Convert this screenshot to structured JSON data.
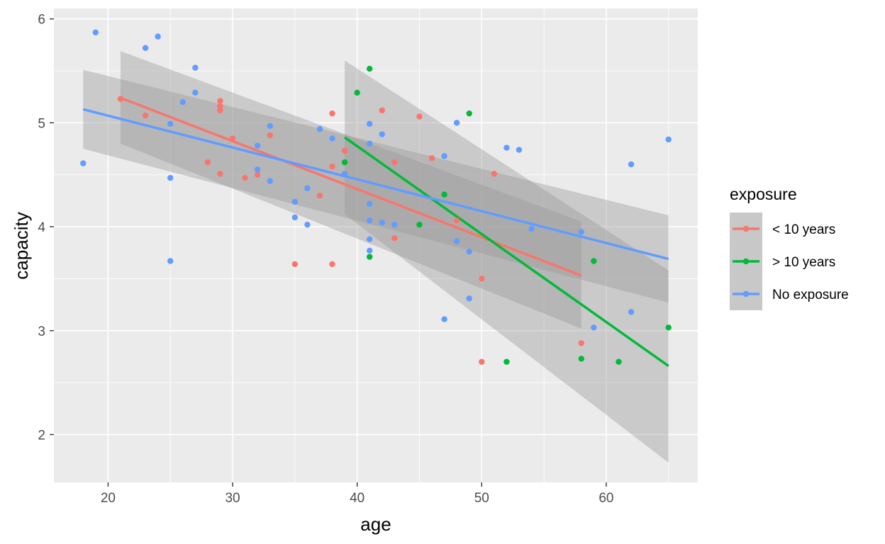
{
  "chart_data": {
    "type": "scatter",
    "xlabel": "age",
    "ylabel": "capacity",
    "xlim": [
      15.65,
      67.35
    ],
    "ylim": [
      1.54,
      6.1
    ],
    "x_ticks": [
      20,
      30,
      40,
      50,
      60
    ],
    "y_ticks": [
      2,
      3,
      4,
      5,
      6
    ],
    "grid": true,
    "legend": {
      "title": "exposure",
      "position": "right"
    },
    "series": [
      {
        "name": "< 10 years",
        "color": "#F8766D",
        "points": [
          {
            "x": 21,
            "y": 5.23
          },
          {
            "x": 23,
            "y": 5.07
          },
          {
            "x": 28,
            "y": 4.62
          },
          {
            "x": 29,
            "y": 5.21
          },
          {
            "x": 29,
            "y": 5.16
          },
          {
            "x": 29,
            "y": 5.12
          },
          {
            "x": 29,
            "y": 4.51
          },
          {
            "x": 30,
            "y": 4.85
          },
          {
            "x": 31,
            "y": 4.47
          },
          {
            "x": 32,
            "y": 4.5
          },
          {
            "x": 33,
            "y": 4.88
          },
          {
            "x": 35,
            "y": 3.64
          },
          {
            "x": 37,
            "y": 4.3
          },
          {
            "x": 38,
            "y": 5.09
          },
          {
            "x": 38,
            "y": 4.58
          },
          {
            "x": 38,
            "y": 3.64
          },
          {
            "x": 39,
            "y": 4.73
          },
          {
            "x": 42,
            "y": 5.12
          },
          {
            "x": 43,
            "y": 4.62
          },
          {
            "x": 43,
            "y": 3.89
          },
          {
            "x": 45,
            "y": 5.06
          },
          {
            "x": 46,
            "y": 4.66
          },
          {
            "x": 48,
            "y": 4.06
          },
          {
            "x": 50,
            "y": 3.5
          },
          {
            "x": 50,
            "y": 2.7
          },
          {
            "x": 51,
            "y": 4.51
          },
          {
            "x": 58,
            "y": 2.88
          }
        ],
        "fit": {
          "x": [
            21,
            58
          ],
          "y": [
            5.24,
            3.53
          ],
          "band_low": [
            4.8,
            3.02
          ],
          "band_high": [
            5.69,
            4.05
          ]
        }
      },
      {
        "name": "> 10 years",
        "color": "#00BA38",
        "points": [
          {
            "x": 39,
            "y": 4.62
          },
          {
            "x": 40,
            "y": 5.29
          },
          {
            "x": 41,
            "y": 5.52
          },
          {
            "x": 41,
            "y": 3.71
          },
          {
            "x": 45,
            "y": 4.02
          },
          {
            "x": 47,
            "y": 4.31
          },
          {
            "x": 49,
            "y": 5.09
          },
          {
            "x": 52,
            "y": 2.7
          },
          {
            "x": 58,
            "y": 2.73
          },
          {
            "x": 59,
            "y": 3.67
          },
          {
            "x": 61,
            "y": 2.7
          },
          {
            "x": 65,
            "y": 3.03
          }
        ],
        "fit": {
          "x": [
            39,
            65
          ],
          "y": [
            4.86,
            2.66
          ],
          "band_low": [
            4.12,
            1.73
          ],
          "band_high": [
            5.6,
            3.58
          ]
        }
      },
      {
        "name": "No exposure",
        "color": "#619CFF",
        "points": [
          {
            "x": 18,
            "y": 4.61
          },
          {
            "x": 19,
            "y": 5.87
          },
          {
            "x": 23,
            "y": 5.72
          },
          {
            "x": 24,
            "y": 5.83
          },
          {
            "x": 25,
            "y": 4.99
          },
          {
            "x": 25,
            "y": 4.47
          },
          {
            "x": 25,
            "y": 3.67
          },
          {
            "x": 26,
            "y": 5.2
          },
          {
            "x": 27,
            "y": 5.53
          },
          {
            "x": 27,
            "y": 5.29
          },
          {
            "x": 32,
            "y": 4.78
          },
          {
            "x": 32,
            "y": 4.55
          },
          {
            "x": 33,
            "y": 4.97
          },
          {
            "x": 33,
            "y": 4.44
          },
          {
            "x": 35,
            "y": 4.24
          },
          {
            "x": 35,
            "y": 4.09
          },
          {
            "x": 36,
            "y": 4.37
          },
          {
            "x": 36,
            "y": 4.02
          },
          {
            "x": 37,
            "y": 4.94
          },
          {
            "x": 38,
            "y": 4.85
          },
          {
            "x": 39,
            "y": 4.51
          },
          {
            "x": 41,
            "y": 4.99
          },
          {
            "x": 41,
            "y": 4.8
          },
          {
            "x": 41,
            "y": 4.22
          },
          {
            "x": 41,
            "y": 4.06
          },
          {
            "x": 41,
            "y": 3.88
          },
          {
            "x": 41,
            "y": 3.77
          },
          {
            "x": 42,
            "y": 4.89
          },
          {
            "x": 42,
            "y": 4.04
          },
          {
            "x": 43,
            "y": 4.02
          },
          {
            "x": 47,
            "y": 4.68
          },
          {
            "x": 47,
            "y": 3.11
          },
          {
            "x": 48,
            "y": 5.0
          },
          {
            "x": 48,
            "y": 3.86
          },
          {
            "x": 49,
            "y": 3.76
          },
          {
            "x": 49,
            "y": 3.31
          },
          {
            "x": 52,
            "y": 4.76
          },
          {
            "x": 53,
            "y": 4.74
          },
          {
            "x": 54,
            "y": 3.98
          },
          {
            "x": 58,
            "y": 3.95
          },
          {
            "x": 59,
            "y": 3.03
          },
          {
            "x": 62,
            "y": 4.6
          },
          {
            "x": 62,
            "y": 3.18
          },
          {
            "x": 65,
            "y": 4.84
          }
        ],
        "fit": {
          "x": [
            18,
            65
          ],
          "y": [
            5.13,
            3.69
          ],
          "band_low": [
            4.75,
            3.27
          ],
          "band_high": [
            5.51,
            4.11
          ]
        }
      }
    ]
  }
}
